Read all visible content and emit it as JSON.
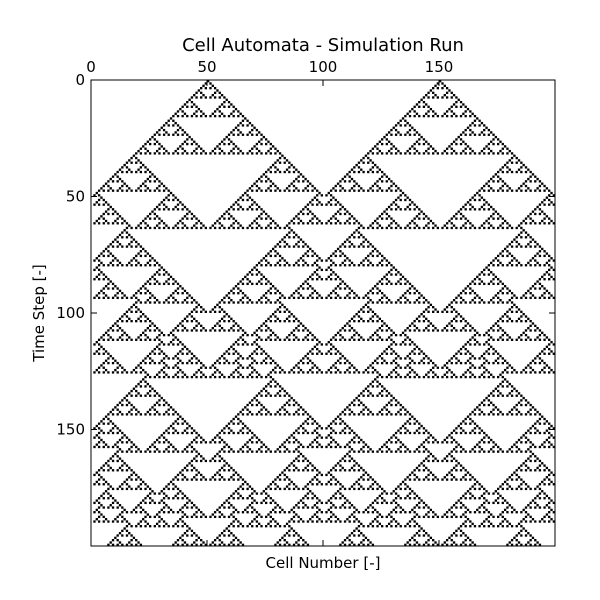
{
  "chart_data": {
    "type": "heatmap",
    "title": "Cell Automata - Simulation Run",
    "xlabel": "Cell Number [-]",
    "ylabel": "Time Step [-]",
    "x_axis_position": "top",
    "y_axis_inverted": true,
    "xlim": [
      0,
      200
    ],
    "ylim": [
      0,
      200
    ],
    "x_ticks": [
      {
        "value": 0,
        "label": "0"
      },
      {
        "value": 50,
        "label": "50"
      },
      {
        "value": 100,
        "label": "100"
      },
      {
        "value": 150,
        "label": "150"
      }
    ],
    "y_ticks": [
      {
        "value": 0,
        "label": "0"
      },
      {
        "value": 50,
        "label": "50"
      },
      {
        "value": 100,
        "label": "100"
      },
      {
        "value": 150,
        "label": "150"
      }
    ],
    "grid": false,
    "colormap": {
      "alive": "#000000",
      "dead": "#ffffff"
    },
    "automaton": {
      "rule": 90,
      "cells": 200,
      "steps": 200,
      "boundary": "periodic",
      "initial_live_cells": [
        50,
        150
      ]
    }
  }
}
